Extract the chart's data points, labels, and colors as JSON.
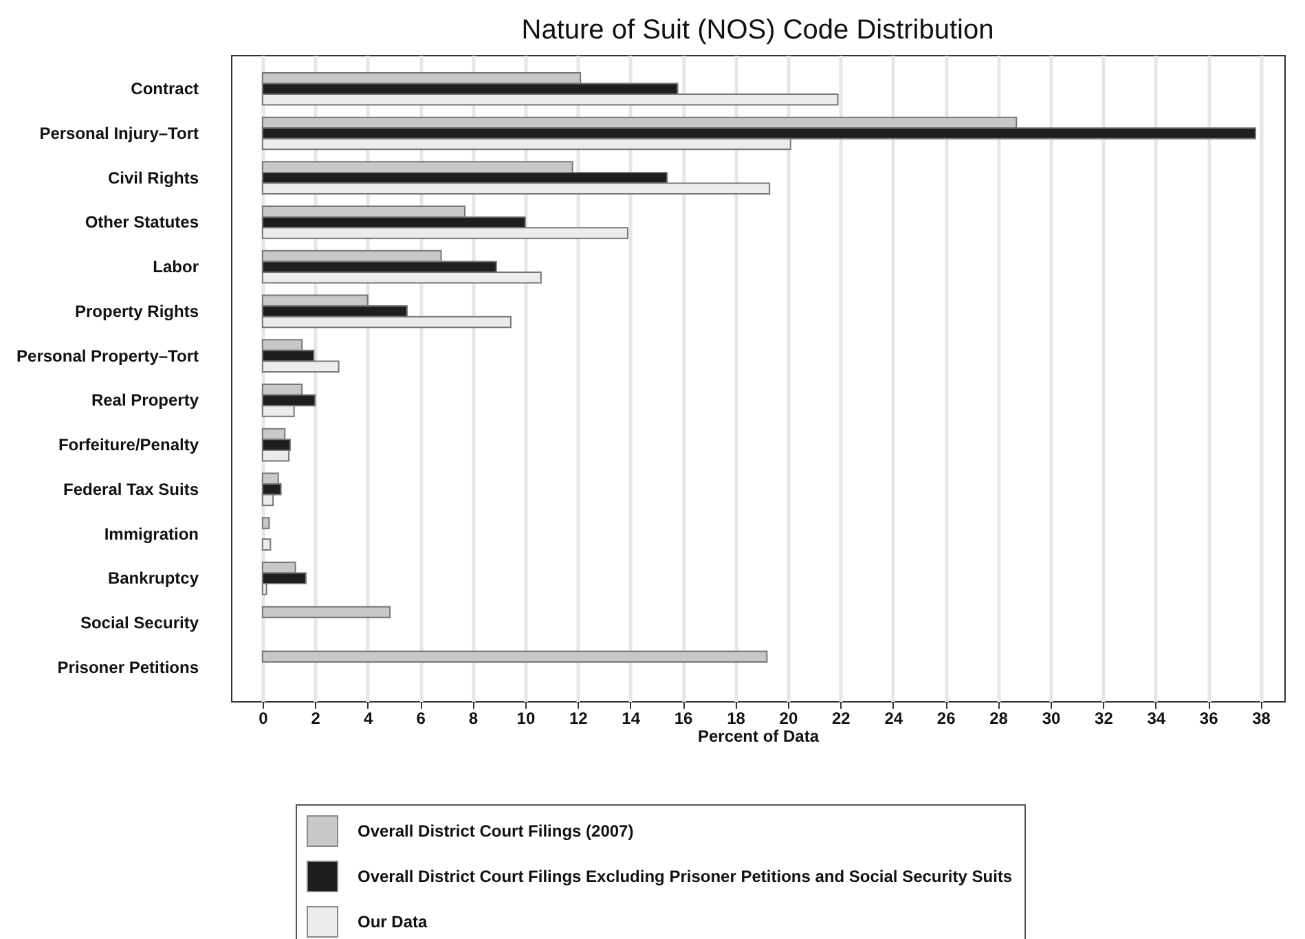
{
  "chart_data": {
    "type": "bar",
    "orientation": "horizontal",
    "title": "Nature of Suit (NOS) Code Distribution",
    "xlabel": "Percent of Data",
    "categories": [
      "Contract",
      "Personal Injury–Tort",
      "Civil Rights",
      "Other Statutes",
      "Labor",
      "Property Rights",
      "Personal Property–Tort",
      "Real Property",
      "Forfeiture/Penalty",
      "Federal Tax Suits",
      "Immigration",
      "Bankruptcy",
      "Social Security",
      "Prisoner Petitions"
    ],
    "series": [
      {
        "name": "Overall District Court Filings (2007)",
        "color": "#c8c8c8",
        "values": [
          12.1,
          28.7,
          11.8,
          7.7,
          6.8,
          4.0,
          1.5,
          1.5,
          0.85,
          0.6,
          0.25,
          1.25,
          4.85,
          19.2
        ]
      },
      {
        "name": "Overall District Court Filings Excluding Prisoner Petitions and Social Security Suits",
        "color": "#1e1e1e",
        "values": [
          15.8,
          37.8,
          15.4,
          10.0,
          8.9,
          5.5,
          1.95,
          2.0,
          1.05,
          0.7,
          null,
          1.65,
          null,
          null
        ]
      },
      {
        "name": "Our Data",
        "color": "#ececec",
        "values": [
          21.9,
          20.1,
          19.3,
          13.9,
          10.6,
          9.45,
          2.9,
          1.2,
          1.0,
          0.4,
          0.3,
          0.15,
          null,
          null
        ]
      }
    ],
    "xlim": [
      -1.2,
      38.9
    ],
    "xticks": [
      0,
      2,
      4,
      6,
      8,
      10,
      12,
      14,
      16,
      18,
      20,
      22,
      24,
      26,
      28,
      30,
      32,
      34,
      36,
      38
    ],
    "grid": "x",
    "legend": "bottom"
  }
}
